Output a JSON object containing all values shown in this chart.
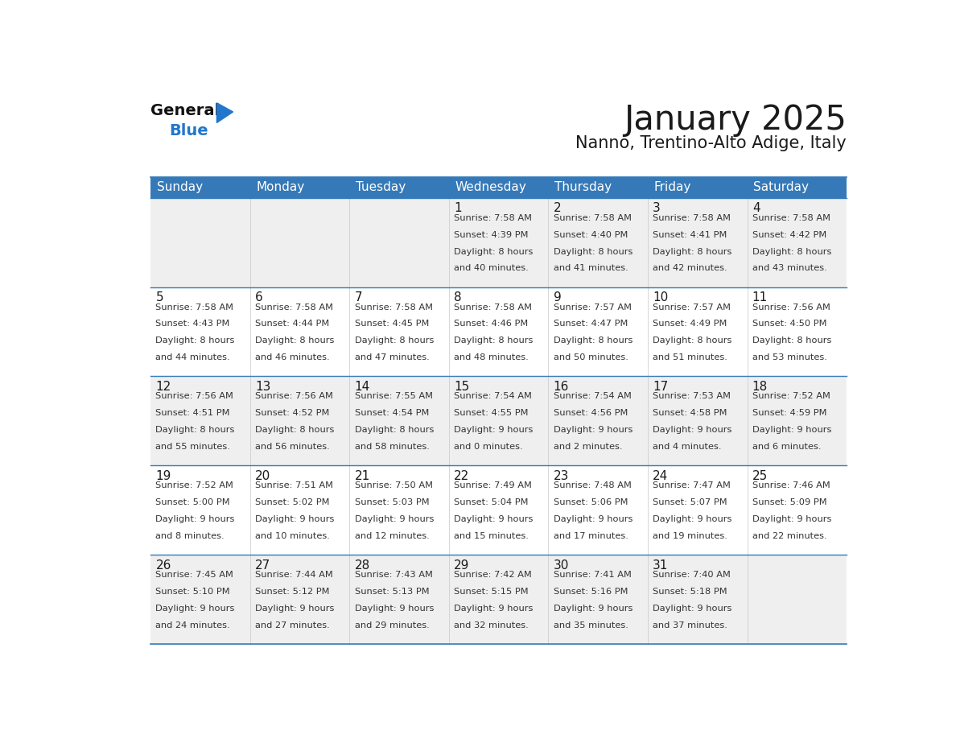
{
  "title": "January 2025",
  "subtitle": "Nanno, Trentino-Alto Adige, Italy",
  "days_of_week": [
    "Sunday",
    "Monday",
    "Tuesday",
    "Wednesday",
    "Thursday",
    "Friday",
    "Saturday"
  ],
  "header_bg": "#3579B8",
  "header_text": "#FFFFFF",
  "row_bg_odd": "#EFEFEF",
  "row_bg_even": "#FFFFFF",
  "cell_border": "#3579B8",
  "title_color": "#1a1a1a",
  "subtitle_color": "#1a1a1a",
  "day_number_color": "#1a1a1a",
  "cell_text_color": "#333333",
  "logo_general_color": "#111111",
  "logo_blue_color": "#2277CC",
  "logo_triangle_color": "#2277CC",
  "calendar_data": [
    [
      null,
      null,
      null,
      {
        "day": 1,
        "sunrise": "7:58 AM",
        "sunset": "4:39 PM",
        "daylight_h": "8",
        "daylight_m": "40"
      },
      {
        "day": 2,
        "sunrise": "7:58 AM",
        "sunset": "4:40 PM",
        "daylight_h": "8",
        "daylight_m": "41"
      },
      {
        "day": 3,
        "sunrise": "7:58 AM",
        "sunset": "4:41 PM",
        "daylight_h": "8",
        "daylight_m": "42"
      },
      {
        "day": 4,
        "sunrise": "7:58 AM",
        "sunset": "4:42 PM",
        "daylight_h": "8",
        "daylight_m": "43"
      }
    ],
    [
      {
        "day": 5,
        "sunrise": "7:58 AM",
        "sunset": "4:43 PM",
        "daylight_h": "8",
        "daylight_m": "44"
      },
      {
        "day": 6,
        "sunrise": "7:58 AM",
        "sunset": "4:44 PM",
        "daylight_h": "8",
        "daylight_m": "46"
      },
      {
        "day": 7,
        "sunrise": "7:58 AM",
        "sunset": "4:45 PM",
        "daylight_h": "8",
        "daylight_m": "47"
      },
      {
        "day": 8,
        "sunrise": "7:58 AM",
        "sunset": "4:46 PM",
        "daylight_h": "8",
        "daylight_m": "48"
      },
      {
        "day": 9,
        "sunrise": "7:57 AM",
        "sunset": "4:47 PM",
        "daylight_h": "8",
        "daylight_m": "50"
      },
      {
        "day": 10,
        "sunrise": "7:57 AM",
        "sunset": "4:49 PM",
        "daylight_h": "8",
        "daylight_m": "51"
      },
      {
        "day": 11,
        "sunrise": "7:56 AM",
        "sunset": "4:50 PM",
        "daylight_h": "8",
        "daylight_m": "53"
      }
    ],
    [
      {
        "day": 12,
        "sunrise": "7:56 AM",
        "sunset": "4:51 PM",
        "daylight_h": "8",
        "daylight_m": "55"
      },
      {
        "day": 13,
        "sunrise": "7:56 AM",
        "sunset": "4:52 PM",
        "daylight_h": "8",
        "daylight_m": "56"
      },
      {
        "day": 14,
        "sunrise": "7:55 AM",
        "sunset": "4:54 PM",
        "daylight_h": "8",
        "daylight_m": "58"
      },
      {
        "day": 15,
        "sunrise": "7:54 AM",
        "sunset": "4:55 PM",
        "daylight_h": "9",
        "daylight_m": "0"
      },
      {
        "day": 16,
        "sunrise": "7:54 AM",
        "sunset": "4:56 PM",
        "daylight_h": "9",
        "daylight_m": "2"
      },
      {
        "day": 17,
        "sunrise": "7:53 AM",
        "sunset": "4:58 PM",
        "daylight_h": "9",
        "daylight_m": "4"
      },
      {
        "day": 18,
        "sunrise": "7:52 AM",
        "sunset": "4:59 PM",
        "daylight_h": "9",
        "daylight_m": "6"
      }
    ],
    [
      {
        "day": 19,
        "sunrise": "7:52 AM",
        "sunset": "5:00 PM",
        "daylight_h": "9",
        "daylight_m": "8"
      },
      {
        "day": 20,
        "sunrise": "7:51 AM",
        "sunset": "5:02 PM",
        "daylight_h": "9",
        "daylight_m": "10"
      },
      {
        "day": 21,
        "sunrise": "7:50 AM",
        "sunset": "5:03 PM",
        "daylight_h": "9",
        "daylight_m": "12"
      },
      {
        "day": 22,
        "sunrise": "7:49 AM",
        "sunset": "5:04 PM",
        "daylight_h": "9",
        "daylight_m": "15"
      },
      {
        "day": 23,
        "sunrise": "7:48 AM",
        "sunset": "5:06 PM",
        "daylight_h": "9",
        "daylight_m": "17"
      },
      {
        "day": 24,
        "sunrise": "7:47 AM",
        "sunset": "5:07 PM",
        "daylight_h": "9",
        "daylight_m": "19"
      },
      {
        "day": 25,
        "sunrise": "7:46 AM",
        "sunset": "5:09 PM",
        "daylight_h": "9",
        "daylight_m": "22"
      }
    ],
    [
      {
        "day": 26,
        "sunrise": "7:45 AM",
        "sunset": "5:10 PM",
        "daylight_h": "9",
        "daylight_m": "24"
      },
      {
        "day": 27,
        "sunrise": "7:44 AM",
        "sunset": "5:12 PM",
        "daylight_h": "9",
        "daylight_m": "27"
      },
      {
        "day": 28,
        "sunrise": "7:43 AM",
        "sunset": "5:13 PM",
        "daylight_h": "9",
        "daylight_m": "29"
      },
      {
        "day": 29,
        "sunrise": "7:42 AM",
        "sunset": "5:15 PM",
        "daylight_h": "9",
        "daylight_m": "32"
      },
      {
        "day": 30,
        "sunrise": "7:41 AM",
        "sunset": "5:16 PM",
        "daylight_h": "9",
        "daylight_m": "35"
      },
      {
        "day": 31,
        "sunrise": "7:40 AM",
        "sunset": "5:18 PM",
        "daylight_h": "9",
        "daylight_m": "37"
      },
      null
    ]
  ]
}
